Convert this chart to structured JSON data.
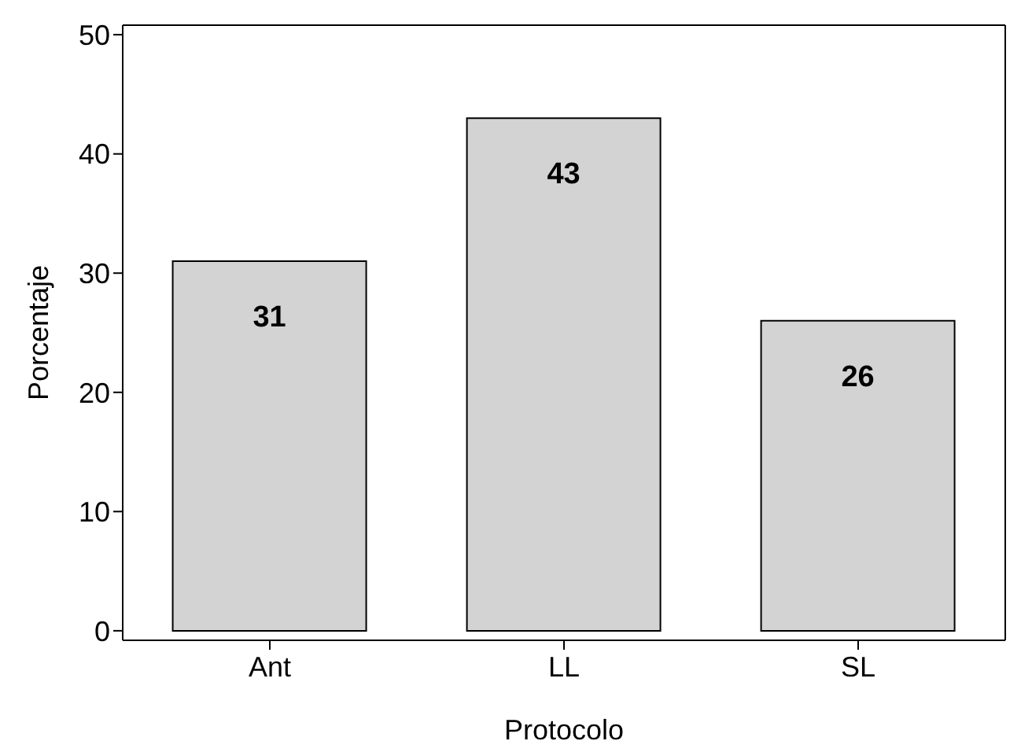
{
  "chart_data": {
    "type": "bar",
    "xlabel": "Protocolo",
    "ylabel": "Porcentaje",
    "categories": [
      "Ant",
      "LL",
      "SL"
    ],
    "values": [
      31,
      43,
      26
    ],
    "data_labels": true,
    "color": "#d3d3d3",
    "ylim": [
      -0.8,
      50.8
    ],
    "yticks": [
      0,
      10,
      20,
      30,
      40,
      50
    ],
    "grid": false
  }
}
